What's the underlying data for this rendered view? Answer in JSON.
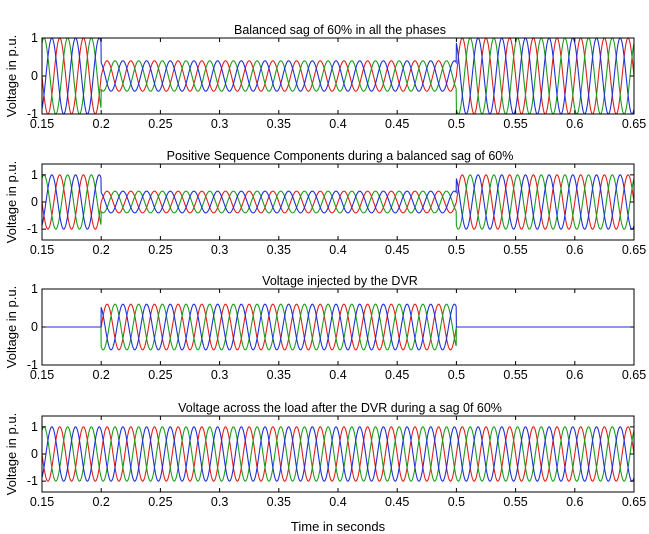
{
  "colors": {
    "phase_a": "#e0201b",
    "phase_b": "#1b9e1b",
    "phase_c": "#1f2fd6",
    "axes": "#000000",
    "background": "#ffffff"
  },
  "xlabel": "Time in seconds",
  "chart_data": [
    {
      "type": "line",
      "title": "Balanced sag of 60% in all the  phases",
      "ylabel": "Voltage in p.u.",
      "xlim": [
        0.15,
        0.65
      ],
      "ylim": [
        -1,
        1
      ],
      "xticks": [
        "0.15",
        "0.2",
        "0.25",
        "0.3",
        "0.35",
        "0.4",
        "0.45",
        "0.5",
        "0.55",
        "0.6",
        "0.65"
      ],
      "yticks": [
        "-1",
        "0",
        "1"
      ],
      "frequency_hz": 50,
      "segments": [
        {
          "t_start": 0.15,
          "t_end": 0.2,
          "amplitude": 1.0
        },
        {
          "t_start": 0.2,
          "t_end": 0.5,
          "amplitude": 0.4
        },
        {
          "t_start": 0.5,
          "t_end": 0.65,
          "amplitude": 1.0
        }
      ],
      "series": [
        {
          "phase_deg": 0,
          "color": "#e0201b"
        },
        {
          "phase_deg": -120,
          "color": "#1b9e1b"
        },
        {
          "phase_deg": 120,
          "color": "#1f2fd6"
        }
      ]
    },
    {
      "type": "line",
      "title": "Positive Sequence Components during a balanced sag of 60%",
      "ylabel": "Voltage in p.u.",
      "xlim": [
        0.15,
        0.65
      ],
      "ylim": [
        -1.4,
        1.4
      ],
      "xticks": [
        "0.15",
        "0.2",
        "0.25",
        "0.3",
        "0.35",
        "0.4",
        "0.45",
        "0.5",
        "0.55",
        "0.6",
        "0.65"
      ],
      "yticks": [
        "-1",
        "0",
        "1"
      ],
      "frequency_hz": 50,
      "segments": [
        {
          "t_start": 0.15,
          "t_end": 0.2,
          "amplitude": 1.0
        },
        {
          "t_start": 0.2,
          "t_end": 0.5,
          "amplitude": 0.4
        },
        {
          "t_start": 0.5,
          "t_end": 0.65,
          "amplitude": 1.0
        }
      ],
      "series": [
        {
          "phase_deg": 0,
          "color": "#e0201b"
        },
        {
          "phase_deg": -120,
          "color": "#1b9e1b"
        },
        {
          "phase_deg": 120,
          "color": "#1f2fd6"
        }
      ]
    },
    {
      "type": "line",
      "title": "Voltage injected by the DVR",
      "ylabel": "Voltage in p.u.",
      "xlim": [
        0.15,
        0.65
      ],
      "ylim": [
        -1,
        1
      ],
      "xticks": [
        "0.15",
        "0.2",
        "0.25",
        "0.3",
        "0.35",
        "0.4",
        "0.45",
        "0.5",
        "0.55",
        "0.6",
        "0.65"
      ],
      "yticks": [
        "-1",
        "0",
        "1"
      ],
      "frequency_hz": 50,
      "segments": [
        {
          "t_start": 0.15,
          "t_end": 0.2,
          "amplitude": 0.0
        },
        {
          "t_start": 0.2,
          "t_end": 0.5,
          "amplitude": 0.6
        },
        {
          "t_start": 0.5,
          "t_end": 0.65,
          "amplitude": 0.0
        }
      ],
      "series": [
        {
          "phase_deg": 0,
          "color": "#e0201b"
        },
        {
          "phase_deg": -120,
          "color": "#1b9e1b"
        },
        {
          "phase_deg": 120,
          "color": "#1f2fd6"
        }
      ]
    },
    {
      "type": "line",
      "title": "Voltage across the load after the DVR during a sag 0f 60%",
      "ylabel": "Voltage in p.u.",
      "xlim": [
        0.15,
        0.65
      ],
      "ylim": [
        -1.4,
        1.4
      ],
      "xticks": [
        "0.15",
        "0.2",
        "0.25",
        "0.3",
        "0.35",
        "0.4",
        "0.45",
        "0.5",
        "0.55",
        "0.6",
        "0.65"
      ],
      "yticks": [
        "-1",
        "0",
        "1"
      ],
      "frequency_hz": 50,
      "segments": [
        {
          "t_start": 0.15,
          "t_end": 0.65,
          "amplitude": 1.0
        }
      ],
      "series": [
        {
          "phase_deg": 0,
          "color": "#e0201b"
        },
        {
          "phase_deg": -120,
          "color": "#1b9e1b"
        },
        {
          "phase_deg": 120,
          "color": "#1f2fd6"
        }
      ]
    }
  ]
}
